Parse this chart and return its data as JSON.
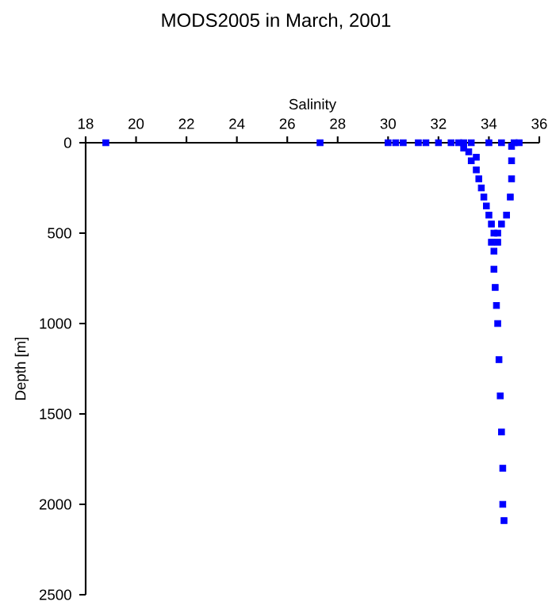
{
  "chart_data": {
    "type": "scatter",
    "title": "MODS2005 in March, 2001",
    "xlabel": "Salinity",
    "ylabel": "Depth [m]",
    "xlim": [
      18,
      36
    ],
    "ylim": [
      2500,
      0
    ],
    "xticks": [
      18,
      20,
      22,
      24,
      26,
      28,
      30,
      32,
      34,
      36
    ],
    "yticks": [
      0,
      500,
      1000,
      1500,
      2000,
      2500
    ],
    "marker": "square",
    "series": [
      {
        "color": "#0000ff",
        "x": [
          18.8,
          27.3,
          30.0,
          30.3,
          30.6,
          31.2,
          31.5,
          32.0,
          32.5,
          32.8,
          33.0,
          33.3,
          34.0,
          34.5,
          35.0,
          35.2,
          33.0,
          33.2,
          33.5,
          33.3,
          33.5,
          33.6,
          33.7,
          33.8,
          33.9,
          34.0,
          34.1,
          34.2,
          34.1,
          34.9,
          34.9,
          34.9,
          34.85,
          34.7,
          34.5,
          34.35,
          34.35,
          34.2,
          34.2,
          34.25,
          34.3,
          34.35,
          34.4,
          34.45,
          34.5,
          34.55,
          34.55,
          34.6
        ],
        "values": [
          0,
          0,
          0,
          0,
          0,
          0,
          0,
          0,
          0,
          0,
          0,
          0,
          0,
          0,
          0,
          0,
          30,
          50,
          80,
          100,
          150,
          200,
          250,
          300,
          350,
          400,
          450,
          500,
          550,
          20,
          100,
          200,
          300,
          400,
          450,
          500,
          550,
          600,
          700,
          800,
          900,
          1000,
          1200,
          1400,
          1600,
          1800,
          2000,
          2090
        ]
      }
    ]
  }
}
